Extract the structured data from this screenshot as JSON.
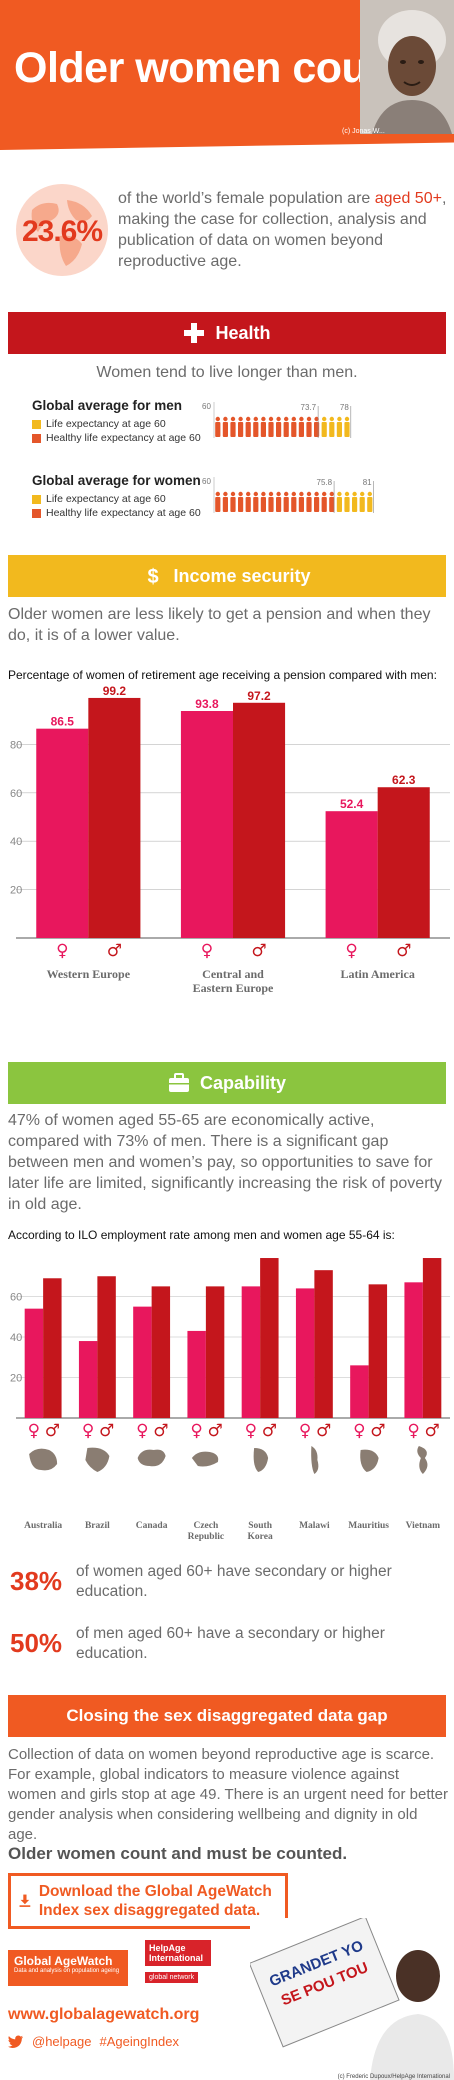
{
  "header": {
    "title": "Older women count",
    "photo_credit": "(c) Jonas W..."
  },
  "intro": {
    "value": "23.6%",
    "text_before": "of the world’s female population are ",
    "text_highlight": "aged 50+",
    "text_after": ", making the case for collection, analysis and publication of data on women beyond reproductive age."
  },
  "health": {
    "heading": "Health",
    "subtitle": "Women tend to live longer than men.",
    "men": {
      "title": "Global average for men",
      "legend_life": "Life expectancy at age 60",
      "legend_healthy": "Healthy life expectancy at age 60",
      "start_label": "60",
      "healthy_label": "73.7",
      "life_label": "78",
      "healthy": 73.7,
      "life": 78
    },
    "women": {
      "title": "Global average for women",
      "legend_life": "Life expectancy at age 60",
      "legend_healthy": "Healthy life expectancy at age 60",
      "start_label": "60",
      "healthy_label": "75.8",
      "life_label": "81",
      "healthy": 75.8,
      "life": 81
    },
    "colors": {
      "healthy": "#e4562a",
      "life": "#f2b91e"
    }
  },
  "income": {
    "heading": "Income security",
    "text": "Older women are less likely to get a pension and when they do, it is of a lower value.",
    "caption": "Percentage of women of retirement age receiving a pension compared with men:"
  },
  "capability": {
    "heading": "Capability",
    "text": "47% of women aged 55-65 are economically active, compared with 73% of men. There is a significant gap between men and women’s pay, so opportunities to save for later life are limited, significantly increasing the risk of poverty in old age.",
    "caption": "According to ILO employment rate among men and women age 55-64 is:"
  },
  "education": [
    {
      "pct": "38%",
      "text": "of women aged 60+ have secondary or higher education."
    },
    {
      "pct": "50%",
      "text": "of men aged 60+ have a secondary or higher education."
    }
  ],
  "gap": {
    "heading": "Closing the sex disaggregated data gap",
    "text": "Collection of data on women beyond reproductive age is scarce. For example, global indicators to measure violence against women and girls stop at age 49. There is an urgent need for better gender analysis when considering wellbeing and dignity in old age.",
    "must": "Older women count and must be counted."
  },
  "footer": {
    "download": "Download the Global AgeWatch Index sex disaggregated data.",
    "logo_gaw": "Global AgeWatch",
    "logo_gaw_sub": "Data and analysis on population ageing",
    "logo_help": "HelpAge International",
    "logo_help_sub": "global network",
    "website": "www.globalagewatch.org",
    "twitter": "@helpage",
    "hashtag": "#AgeingIndex",
    "poster_credit": "(c) Frederic Dupoux/HelpAge International",
    "poster_sign": "GRANDET YO SE POU TOU"
  },
  "chart_data": [
    {
      "type": "bar",
      "title": "Percentage of women of retirement age receiving a pension compared with men:",
      "categories": [
        "Western Europe",
        "Central and Eastern Europe",
        "Latin America"
      ],
      "series": [
        {
          "name": "♀",
          "color": "#e8175d",
          "values": [
            86.5,
            93.8,
            52.4
          ]
        },
        {
          "name": "♂",
          "color": "#c4161c",
          "values": [
            99.2,
            97.2,
            62.3
          ]
        }
      ],
      "category_labels": [
        "Western Europe",
        "Central and\nEastern Europe",
        "Latin America"
      ],
      "yticks": [
        20,
        40,
        60,
        80
      ],
      "ylim": [
        0,
        100
      ],
      "data_labels": true
    },
    {
      "type": "bar",
      "title": "According to ILO employment rate among men and women age 55-64 is:",
      "categories": [
        "Australia",
        "Brazil",
        "Canada",
        "Czech Republic",
        "South Korea",
        "Malawi",
        "Mauritius",
        "Vietnam"
      ],
      "category_labels": [
        "Australia",
        "Brazil",
        "Canada",
        "Czech\nRepublic",
        "South\nKorea",
        "Malawi",
        "Mauritius",
        "Vietnam"
      ],
      "series": [
        {
          "name": "♀",
          "color": "#e8175d",
          "values": [
            54,
            38,
            55,
            43,
            65,
            64,
            26,
            67
          ]
        },
        {
          "name": "♂",
          "color": "#c4161c",
          "values": [
            69,
            70,
            65,
            65,
            79,
            73,
            66,
            79
          ]
        }
      ],
      "yticks": [
        20,
        40,
        60
      ],
      "ylim": [
        0,
        80
      ],
      "data_labels": false
    }
  ]
}
